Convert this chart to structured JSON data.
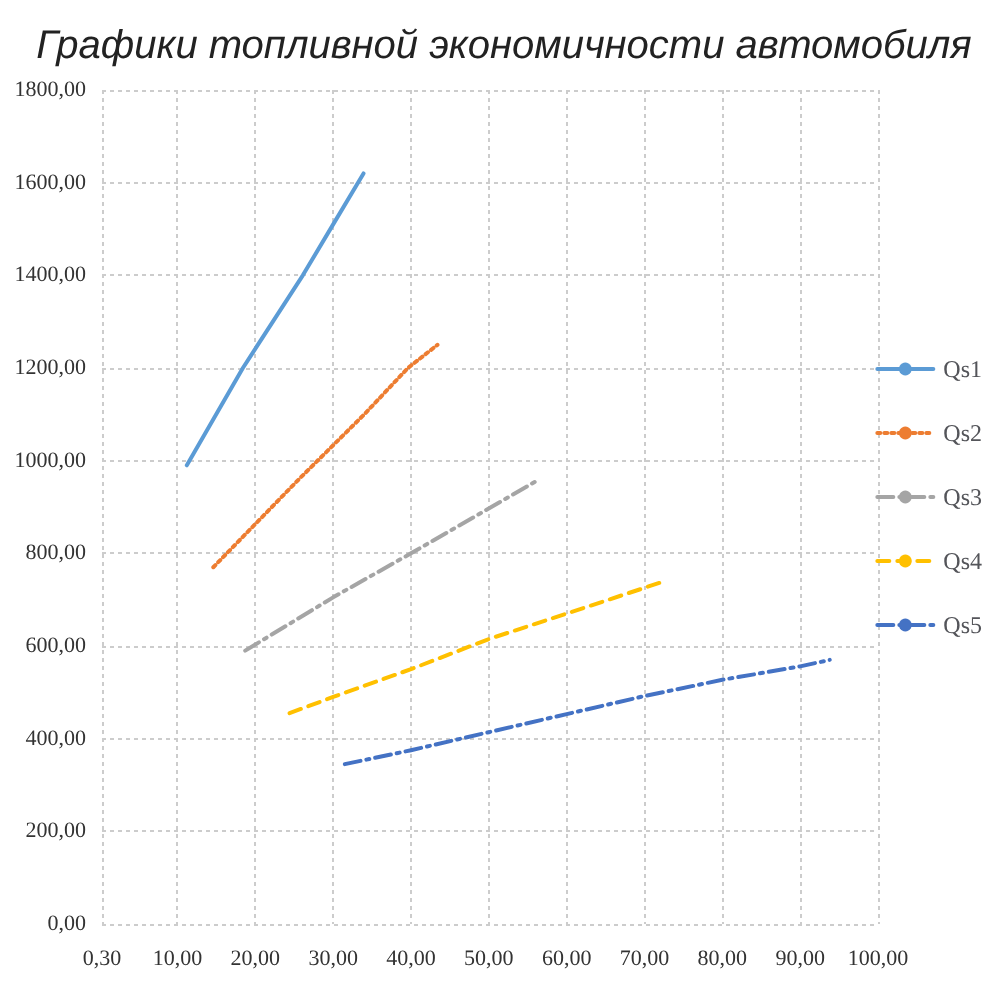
{
  "chart_data": {
    "type": "line",
    "title": "Графики топливной экономичности автомобиля",
    "series": [
      {
        "name": "Qs1",
        "color": "#5b9bd5",
        "line_style": "solid",
        "x": [
          11.2,
          18.4,
          26.1,
          30,
          33.9
        ],
        "values": [
          990,
          1200,
          1400,
          1510,
          1620
        ]
      },
      {
        "name": "Qs2",
        "color": "#ed7d31",
        "line_style": "dotted",
        "x": [
          14.6,
          25.6,
          34,
          39.6,
          43.4
        ],
        "values": [
          770,
          960,
          1100,
          1200,
          1250
        ]
      },
      {
        "name": "Qs3",
        "color": "#a5a5a5",
        "line_style": "dashdot",
        "x": [
          18.7,
          30,
          40,
          56
        ],
        "values": [
          590,
          705,
          800,
          955
        ]
      },
      {
        "name": "Qs4",
        "color": "#ffc000",
        "line_style": "dashed",
        "x": [
          24.4,
          30,
          40,
          50,
          60,
          72.6
        ],
        "values": [
          455,
          490,
          550,
          615,
          670,
          740
        ]
      },
      {
        "name": "Qs5",
        "color": "#4472c4",
        "line_style": "dashdot",
        "x": [
          31.5,
          40,
          50,
          60,
          70,
          80,
          90,
          93.8
        ],
        "values": [
          345,
          375,
          414,
          453,
          492,
          527,
          556,
          570
        ]
      }
    ],
    "xlim": [
      0.3,
      100
    ],
    "xticks": [
      {
        "value": 0.3,
        "label": "0,30"
      },
      {
        "value": 10,
        "label": "10,00"
      },
      {
        "value": 20,
        "label": "20,00"
      },
      {
        "value": 30,
        "label": "30,00"
      },
      {
        "value": 40,
        "label": "40,00"
      },
      {
        "value": 50,
        "label": "50,00"
      },
      {
        "value": 60,
        "label": "60,00"
      },
      {
        "value": 70,
        "label": "70,00"
      },
      {
        "value": 80,
        "label": "80,00"
      },
      {
        "value": 90,
        "label": "90,00"
      },
      {
        "value": 100,
        "label": "100,00"
      }
    ],
    "ylim": [
      0,
      1800
    ],
    "yticks": [
      {
        "value": 0,
        "label": "0,00"
      },
      {
        "value": 200,
        "label": "200,00"
      },
      {
        "value": 400,
        "label": "400,00"
      },
      {
        "value": 600,
        "label": "600,00"
      },
      {
        "value": 800,
        "label": "800,00"
      },
      {
        "value": 1000,
        "label": "1000,00"
      },
      {
        "value": 1200,
        "label": "1200,00"
      },
      {
        "value": 1400,
        "label": "1400,00"
      },
      {
        "value": 1600,
        "label": "1600,00"
      },
      {
        "value": 1800,
        "label": "1800,00"
      }
    ],
    "grid": true,
    "legend": "right",
    "marker": "none"
  }
}
